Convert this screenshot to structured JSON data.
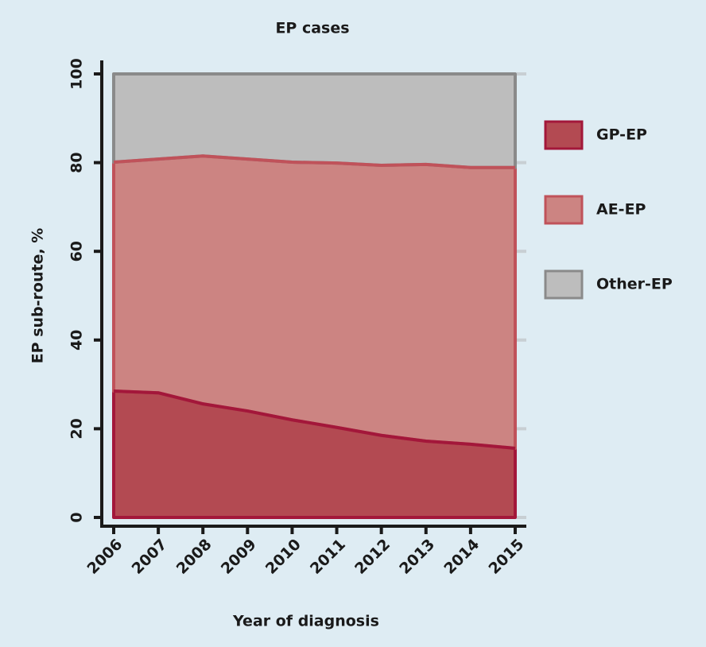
{
  "chart_data": {
    "type": "stacked_area",
    "title": "EP cases",
    "xlabel": "Year of diagnosis",
    "ylabel": "EP sub-route, %",
    "categories": [
      "2006",
      "2007",
      "2008",
      "2009",
      "2010",
      "2011",
      "2012",
      "2013",
      "2014",
      "2015"
    ],
    "series": [
      {
        "name": "GP-EP",
        "color": "#b34a52",
        "edge": "#a3173a",
        "values": [
          28.5,
          28.1,
          25.6,
          24.0,
          22.0,
          20.3,
          18.5,
          17.2,
          16.5,
          15.6
        ]
      },
      {
        "name": "AE-EP",
        "color": "#cc8482",
        "edge": "#c0525a",
        "values": [
          51.6,
          52.7,
          55.9,
          56.8,
          58.1,
          59.6,
          60.9,
          62.4,
          62.4,
          63.3
        ]
      },
      {
        "name": "Other-EP",
        "color": "#bdbdbd",
        "edge": "#8a8a8a",
        "values": [
          19.9,
          19.2,
          18.5,
          19.2,
          19.9,
          20.1,
          20.6,
          20.4,
          21.1,
          21.1
        ]
      }
    ],
    "ylim": [
      0,
      100
    ],
    "yticks": [
      0,
      20,
      40,
      60,
      80,
      100
    ],
    "grid": true,
    "legend": "right"
  }
}
